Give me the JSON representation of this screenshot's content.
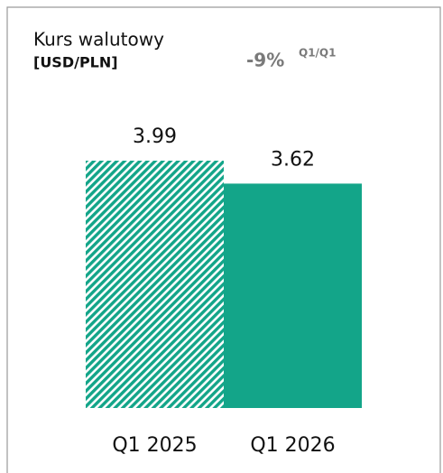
{
  "chart_data": {
    "type": "bar",
    "title": "Kurs walutowy",
    "subtitle": "[USD/PLN]",
    "annotation": {
      "value": "-9%",
      "label": "Q1/Q1"
    },
    "categories": [
      "Q1 2025",
      "Q1 2026"
    ],
    "values": [
      3.99,
      3.62
    ],
    "color": "#13a589",
    "bar_styles": [
      "hatched",
      "solid"
    ]
  }
}
